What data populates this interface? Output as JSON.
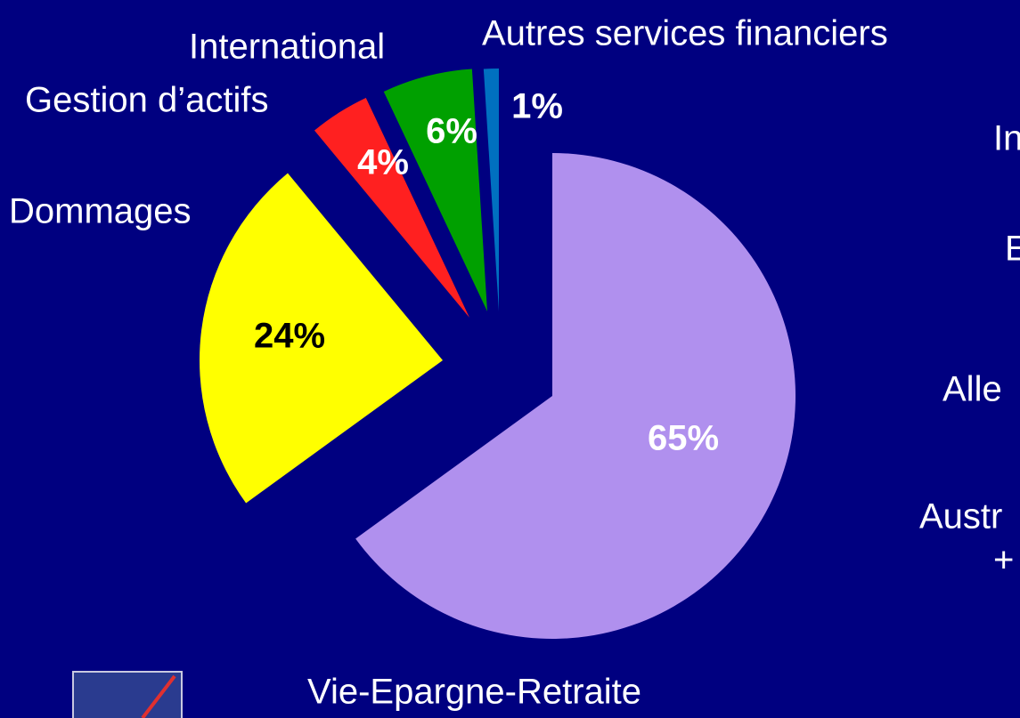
{
  "chart_data": {
    "type": "pie",
    "categories": [
      "Vie-Epargne-Retraite",
      "Dommages",
      "Gestion d’actifs",
      "International",
      "Autres services financiers"
    ],
    "values": [
      65,
      24,
      4,
      6,
      1
    ],
    "value_labels": [
      "65%",
      "24%",
      "4%",
      "6%",
      "1%"
    ],
    "colors": [
      "#b090ee",
      "#ffff00",
      "#ff2020",
      "#00a000",
      "#0070c0"
    ]
  },
  "right_panel": [
    "In",
    "E",
    "Alle",
    "Austr",
    "+"
  ]
}
